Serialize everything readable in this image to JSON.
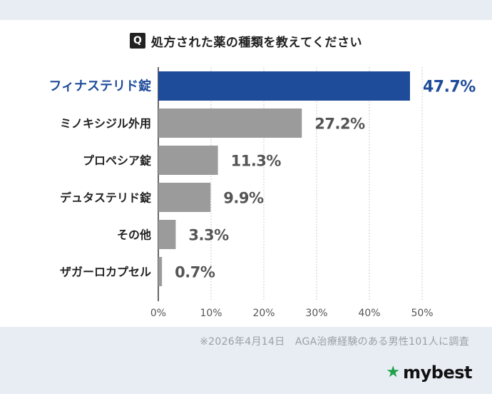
{
  "title": {
    "badge": "Q",
    "text": "処方された薬の種類を教えてください"
  },
  "chart_data": {
    "type": "bar",
    "orientation": "horizontal",
    "categories": [
      "フィナステリド錠",
      "ミノキシジル外用",
      "プロペシア錠",
      "デュタステリド錠",
      "その他",
      "ザガーロカプセル"
    ],
    "values": [
      47.7,
      27.2,
      11.3,
      9.9,
      3.3,
      0.7
    ],
    "value_labels": [
      "47.7%",
      "27.2%",
      "11.3%",
      "9.9%",
      "3.3%",
      "0.7%"
    ],
    "x_ticks": [
      "0%",
      "10%",
      "20%",
      "30%",
      "40%",
      "50%"
    ],
    "xlim": [
      0,
      50
    ],
    "grid": true,
    "highlight_index": 0,
    "colors": {
      "highlight": "#1e4b9a",
      "default": "#9b9b9b",
      "highlight_label": "#1e4b9a",
      "default_label": "#555555",
      "category_label": "#222222"
    }
  },
  "footnote": "※2026年4月14日　AGA治療経験のある男性101人に調査",
  "logo": {
    "icon": "star-icon",
    "text": "mybest",
    "star_color": "#1fa34a"
  }
}
